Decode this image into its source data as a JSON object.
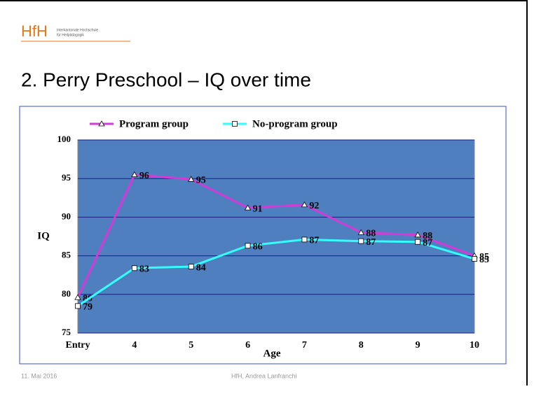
{
  "header": {
    "logo": "HfH",
    "institution_line1": "Interkantonale Hochschule",
    "institution_line2": "für Heilpädagogik"
  },
  "slide_title": "2. Perry Preschool – IQ over time",
  "footer": {
    "date": "11. Mai 2016",
    "author": "HfH, Andrea Lanfranchi"
  },
  "chart_data": {
    "type": "line",
    "categories": [
      "Entry",
      "4",
      "5",
      "6",
      "7",
      "8",
      "9",
      "10"
    ],
    "xlabel": "Age",
    "ylabel": "IQ",
    "series": [
      {
        "name": "Program group",
        "color": "#d23bd8",
        "marker": "triangle",
        "values": [
          79.6,
          95.5,
          94.9,
          91.2,
          91.6,
          88.0,
          87.7,
          85.0
        ],
        "value_labels": [
          "80",
          "96",
          "95",
          "91",
          "92",
          "88",
          "88",
          "85"
        ]
      },
      {
        "name": "No-program group",
        "color": "#33ffff",
        "marker": "square",
        "values": [
          78.5,
          83.4,
          83.6,
          86.3,
          87.1,
          86.9,
          86.8,
          84.6
        ],
        "value_labels": [
          "79",
          "83",
          "84",
          "86",
          "87",
          "87",
          "87",
          "85"
        ]
      }
    ],
    "ylim": [
      75,
      100
    ],
    "yticks": [
      75,
      80,
      85,
      90,
      95,
      100
    ],
    "grid": true,
    "legend": "top"
  }
}
